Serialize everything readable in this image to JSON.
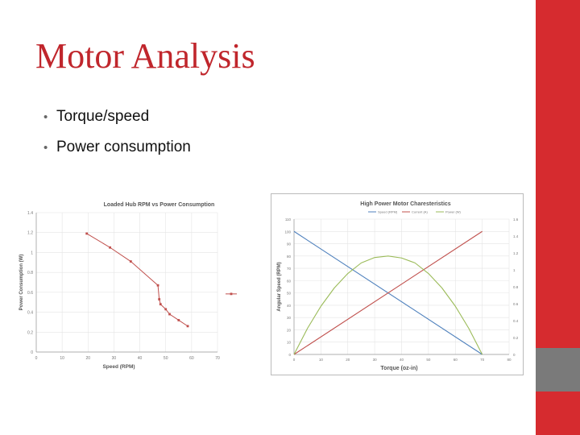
{
  "slide": {
    "title": "Motor Analysis",
    "bullets": [
      "Torque/speed",
      "Power consumption"
    ],
    "colors": {
      "title": "#c0262c",
      "sidebar_red": "#d62b2f",
      "sidebar_gray": "#7a7a7a"
    }
  },
  "chart_data": [
    {
      "type": "line",
      "title": "Loaded Hub RPM vs Power Consumption",
      "xlabel": "Speed (RPM)",
      "ylabel": "Power Consumption (W)",
      "xlim": [
        0,
        70
      ],
      "ylim": [
        0,
        1.4
      ],
      "xticks": [
        0,
        10,
        20,
        30,
        40,
        50,
        60,
        70
      ],
      "yticks": [
        0,
        0.2,
        0.4,
        0.6,
        0.8,
        1,
        1.2,
        1.4
      ],
      "xtick_labels": [
        "0",
        "10",
        "20",
        "30",
        "40",
        "50",
        "60",
        "70"
      ],
      "ytick_labels": [
        "0",
        "0.2",
        "0.4",
        "0.6",
        "0.8",
        "1",
        "1.2",
        "1.4"
      ],
      "grid": true,
      "legend_position": "right",
      "series": [
        {
          "name": "",
          "color": "#c0504d",
          "x": [
            19.5,
            28.5,
            36.5,
            47,
            47.5,
            48,
            50,
            51.5,
            55,
            58.5
          ],
          "y": [
            1.19,
            1.05,
            0.91,
            0.67,
            0.53,
            0.48,
            0.43,
            0.38,
            0.32,
            0.26
          ]
        }
      ]
    },
    {
      "type": "line",
      "title": "High Power Motor Charesteristics",
      "xlabel": "Torque (oz-in)",
      "ylabel": "Angular Speed (RPM)",
      "xlim": [
        0,
        80
      ],
      "ylim": [
        0,
        110
      ],
      "xticks": [
        0,
        10,
        20,
        30,
        40,
        50,
        60,
        70,
        80
      ],
      "yticks": [
        0,
        10,
        20,
        30,
        40,
        50,
        60,
        70,
        80,
        90,
        100,
        110
      ],
      "xtick_labels": [
        "0",
        "10",
        "20",
        "30",
        "40",
        "50",
        "60",
        "70",
        "80"
      ],
      "ytick_labels": [
        "0",
        "10",
        "20",
        "30",
        "40",
        "50",
        "60",
        "70",
        "80",
        "90",
        "100",
        "110"
      ],
      "y2lim": [
        0,
        1.6
      ],
      "y2ticks": [
        0,
        0.2,
        0.4,
        0.6,
        0.8,
        1,
        1.2,
        1.4,
        1.6
      ],
      "y2tick_labels": [
        "0",
        "0.2",
        "0.4",
        "0.6",
        "0.8",
        "1",
        "1.2",
        "1.4",
        "1.6"
      ],
      "grid": true,
      "legend_position": "top",
      "series": [
        {
          "name": "Speed (RPM)",
          "color": "#4f81bd",
          "x": [
            0,
            70
          ],
          "y": [
            100,
            0
          ]
        },
        {
          "name": "Current (A)",
          "color": "#c0504d",
          "x": [
            0,
            70
          ],
          "y": [
            0,
            100
          ]
        },
        {
          "name": "Power (W)",
          "color": "#9bbb59",
          "x": [
            0,
            5,
            10,
            15,
            20,
            25,
            30,
            35,
            40,
            45,
            50,
            55,
            60,
            65,
            70
          ],
          "y": [
            0,
            21.2,
            39.2,
            54.1,
            65.8,
            74.4,
            78.8,
            80,
            78.4,
            74.4,
            65.8,
            54.1,
            39.2,
            21.2,
            0
          ]
        }
      ]
    }
  ]
}
